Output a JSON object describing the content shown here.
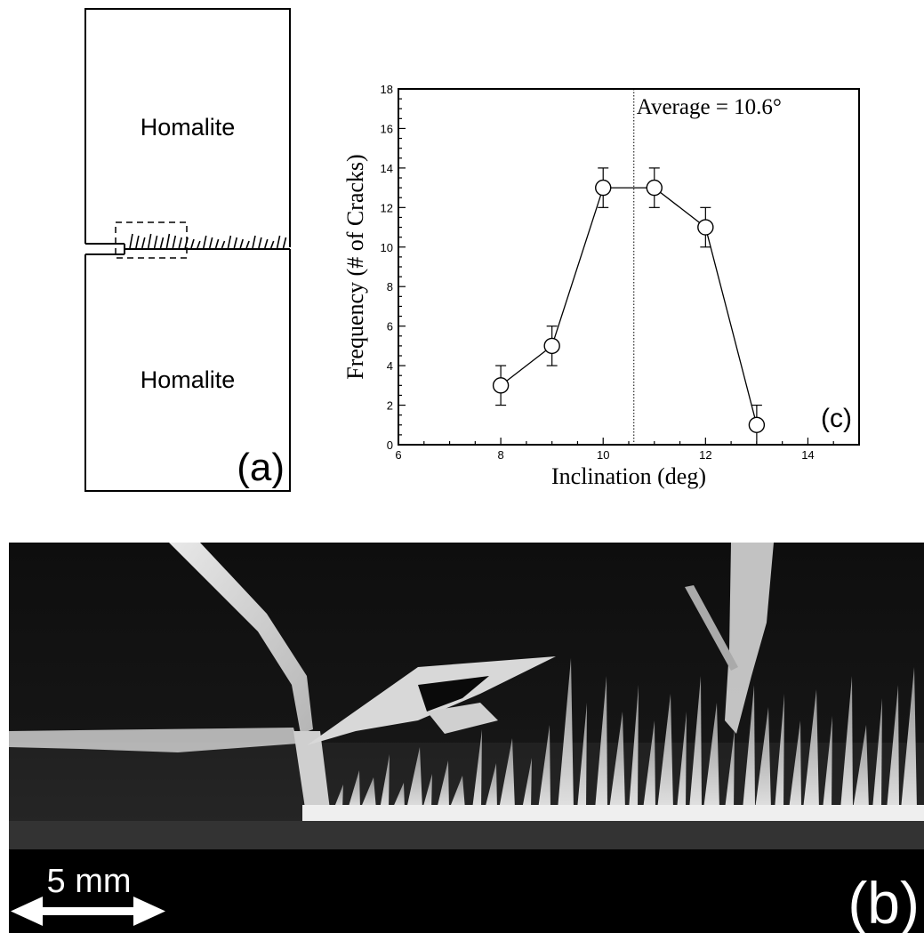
{
  "panel_a": {
    "top_block_label": "Homalite",
    "bottom_block_label": "Homalite",
    "panel_letter": "(a)"
  },
  "panel_b": {
    "scale_bar_label": "5 mm",
    "panel_letter": "(b)"
  },
  "chart_data": {
    "type": "line",
    "x": [
      8,
      9,
      10,
      11,
      12,
      13
    ],
    "series": [
      {
        "values": [
          3,
          5,
          13,
          13,
          11,
          1
        ],
        "error": [
          1,
          1,
          1,
          1,
          1,
          1
        ]
      }
    ],
    "average": 10.6,
    "average_label": "Average = 10.6°",
    "xlabel": "Inclination (deg)",
    "ylabel": "Frequency (# of Cracks)",
    "xlim": [
      6,
      15
    ],
    "ylim": [
      0,
      18
    ],
    "xticks": [
      6,
      8,
      10,
      12,
      14
    ],
    "yticks": [
      0,
      2,
      4,
      6,
      8,
      10,
      12,
      14,
      16,
      18
    ],
    "panel_letter": "(c)",
    "marker": "open-circle",
    "grid": false
  }
}
